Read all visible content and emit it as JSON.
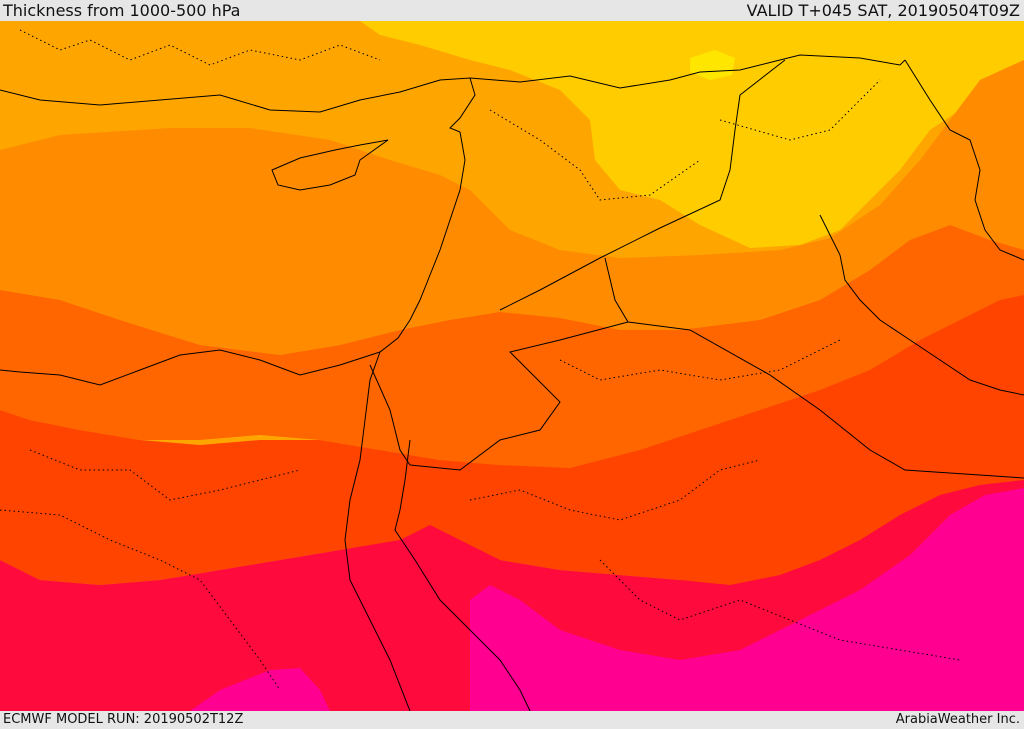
{
  "header": {
    "title": "Thickness from 1000-500 hPa",
    "valid": "VALID T+045 SAT, 20190504T09Z"
  },
  "footer": {
    "model_run": "ECMWF MODEL RUN: 20190502T12Z",
    "credit": "ArabiaWeather Inc."
  },
  "map": {
    "bands": [
      {
        "name": "band-yellow",
        "color": "#ffe600"
      },
      {
        "name": "band-gold",
        "color": "#ffcc00"
      },
      {
        "name": "band-amber",
        "color": "#ffa500"
      },
      {
        "name": "band-orange",
        "color": "#ff8c00"
      },
      {
        "name": "band-dark-orange",
        "color": "#ff6600"
      },
      {
        "name": "band-red-orange",
        "color": "#ff4400"
      },
      {
        "name": "band-crimson",
        "color": "#ff0a3c"
      },
      {
        "name": "band-magenta",
        "color": "#ff0090"
      }
    ],
    "border_color": "#000000"
  }
}
